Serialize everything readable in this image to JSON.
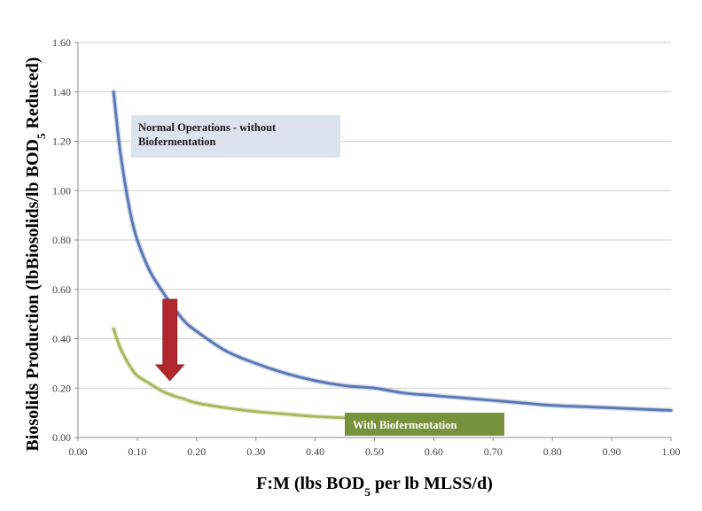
{
  "chart_data": {
    "type": "line",
    "title": "",
    "xlabel": {
      "parts": [
        "F:M (lbs BOD",
        "5",
        " per lb MLSS/d)"
      ]
    },
    "ylabel": {
      "parts": [
        "Biosolids Production (lbBiosolids/lb BOD",
        "5",
        " Reduced)"
      ]
    },
    "xlim": [
      0,
      1.0
    ],
    "ylim": [
      0,
      1.6
    ],
    "x_ticks": [
      "0.00",
      "0.10",
      "0.20",
      "0.30",
      "0.40",
      "0.50",
      "0.60",
      "0.70",
      "0.80",
      "0.90",
      "1.00"
    ],
    "y_ticks": [
      "0.00",
      "0.20",
      "0.40",
      "0.60",
      "0.80",
      "1.00",
      "1.20",
      "1.40",
      "1.60"
    ],
    "grid": "horizontal",
    "series": [
      {
        "name": "Normal Operations - without Biofermentation",
        "color": "#5b78b4",
        "x": [
          0.06,
          0.07,
          0.08,
          0.09,
          0.1,
          0.12,
          0.14,
          0.16,
          0.18,
          0.2,
          0.25,
          0.3,
          0.35,
          0.4,
          0.45,
          0.5,
          0.55,
          0.6,
          0.65,
          0.7,
          0.75,
          0.8,
          0.85,
          0.9,
          0.95,
          1.0
        ],
        "y": [
          1.4,
          1.18,
          1.02,
          0.89,
          0.8,
          0.68,
          0.6,
          0.53,
          0.47,
          0.43,
          0.35,
          0.3,
          0.26,
          0.23,
          0.21,
          0.2,
          0.18,
          0.17,
          0.16,
          0.15,
          0.14,
          0.13,
          0.125,
          0.12,
          0.115,
          0.11
        ]
      },
      {
        "name": "With Biofermentation",
        "color": "#a7b95e",
        "x": [
          0.06,
          0.07,
          0.08,
          0.09,
          0.1,
          0.12,
          0.14,
          0.16,
          0.18,
          0.2,
          0.25,
          0.3,
          0.35,
          0.4,
          0.45
        ],
        "y": [
          0.44,
          0.37,
          0.32,
          0.28,
          0.25,
          0.22,
          0.19,
          0.17,
          0.155,
          0.14,
          0.12,
          0.105,
          0.095,
          0.085,
          0.08
        ]
      }
    ],
    "annotations": [
      {
        "id": "normal",
        "lines": [
          "Normal Operations - without",
          "Biofermentation"
        ],
        "box_color": "#dde2ef",
        "text_color": "#1a1a1a"
      },
      {
        "id": "bio",
        "lines": [
          "With Biofermentation"
        ],
        "box_color": "#76923c",
        "text_color": "#ffffff"
      }
    ],
    "arrow": {
      "x": 0.155,
      "y_from": 0.56,
      "y_to": 0.23,
      "color": "#b0282c",
      "direction": "down"
    }
  }
}
